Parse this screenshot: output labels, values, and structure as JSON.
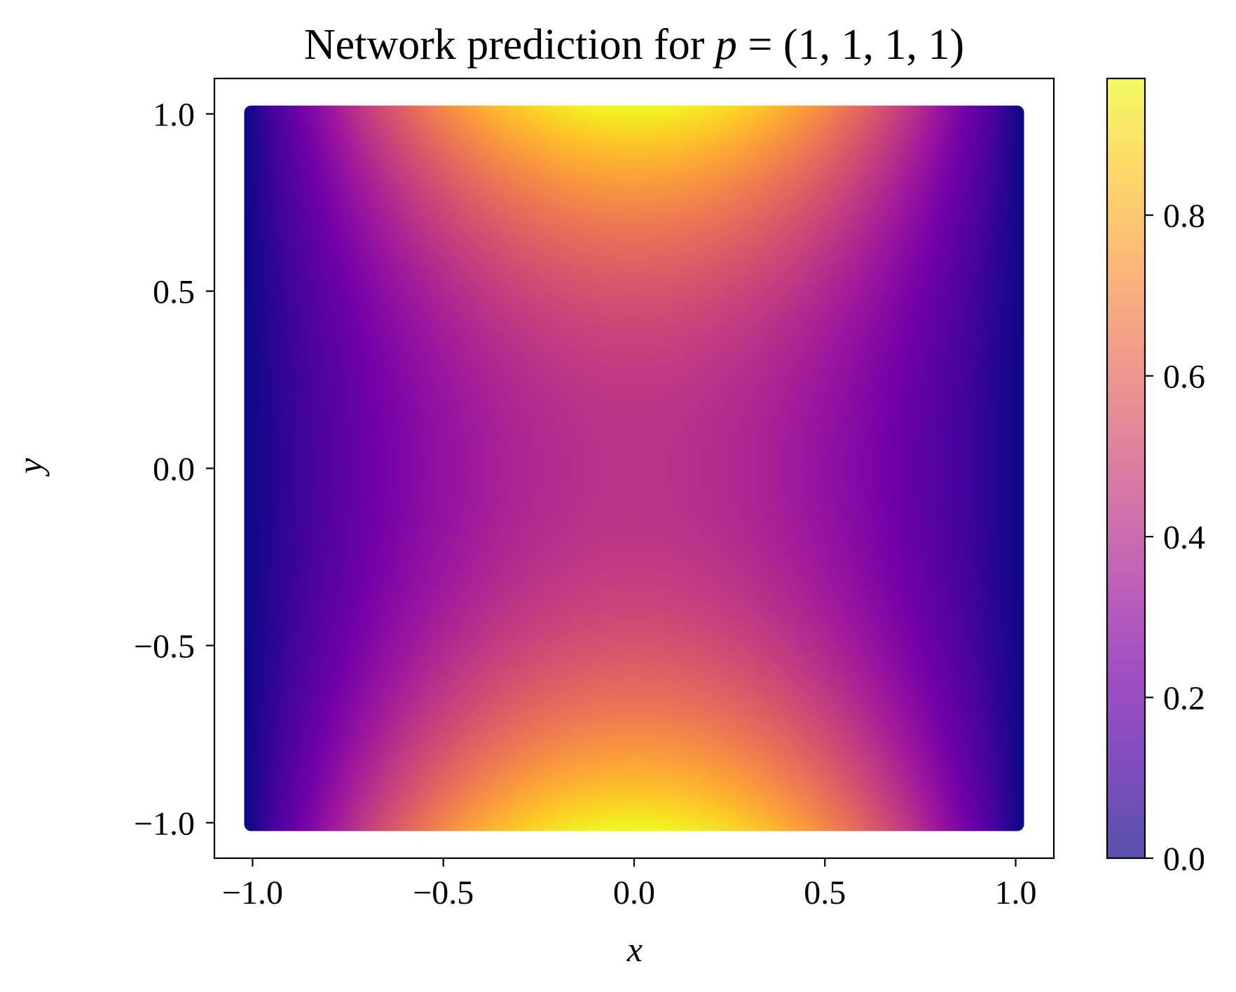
{
  "chart_data": {
    "type": "heatmap",
    "title": {
      "prefix": "Network prediction for ",
      "var": "p",
      "suffix": " = (1, 1, 1, 1)"
    },
    "xlabel": "x",
    "ylabel": "y",
    "xlim": [
      -1.1,
      1.1
    ],
    "ylim": [
      -1.1,
      1.1
    ],
    "data_extent": {
      "x": [
        -1.0,
        1.0
      ],
      "y": [
        -1.0,
        1.0
      ]
    },
    "x_ticks": [
      -1.0,
      -0.5,
      0.0,
      0.5,
      1.0
    ],
    "x_tick_labels": [
      "−1.0",
      "−0.5",
      "0.0",
      "0.5",
      "1.0"
    ],
    "y_ticks": [
      -1.0,
      -0.5,
      0.0,
      0.5,
      1.0
    ],
    "y_tick_labels": [
      "−1.0",
      "−0.5",
      "0.0",
      "0.5",
      "1.0"
    ],
    "colormap": "plasma",
    "colormap_stops": [
      "#0d0887",
      "#46039f",
      "#7201a8",
      "#9c179e",
      "#bd3786",
      "#d8576b",
      "#ed7953",
      "#fb9f3a",
      "#fdca26",
      "#f0f921"
    ],
    "value_range": [
      0.0,
      0.97
    ],
    "colorbar": {
      "ticks": [
        0.0,
        0.2,
        0.4,
        0.6,
        0.8
      ],
      "tick_labels": [
        "0.0",
        "0.2",
        "0.4",
        "0.6",
        "0.8"
      ],
      "alpha": 0.7
    },
    "grid": false,
    "description_values": {
      "value_at_center": 0.42,
      "value_at_top_center": 0.97,
      "value_at_bottom_center": 0.97,
      "value_at_left_right_edges": 0.0
    }
  }
}
